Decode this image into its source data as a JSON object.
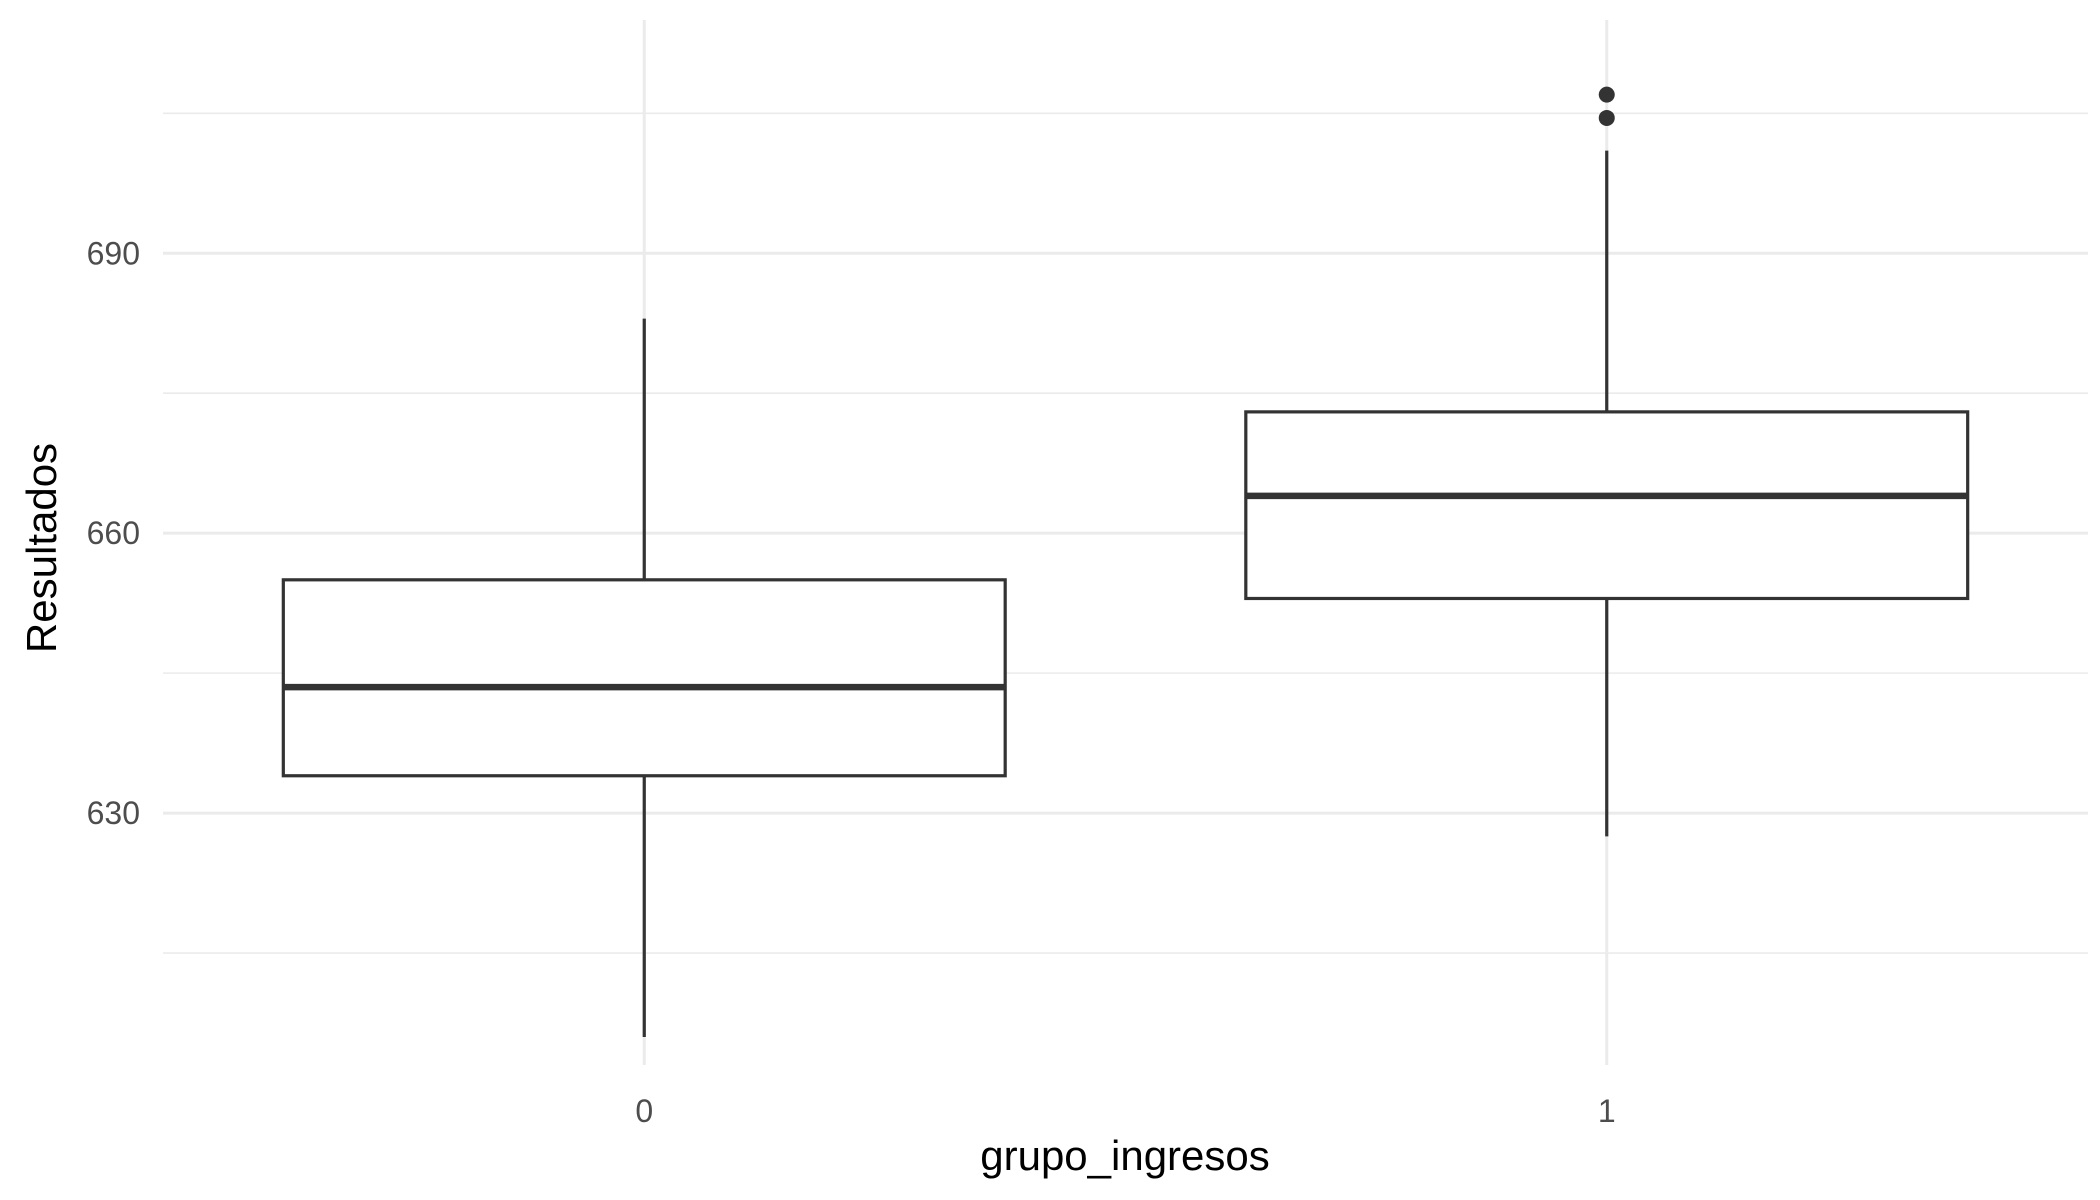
{
  "chart_data": {
    "type": "boxplot",
    "xlabel": "grupo_ingresos",
    "ylabel": "Resultados",
    "categories": [
      "0",
      "1"
    ],
    "ylim": [
      603,
      715
    ],
    "y_ticks": [
      630,
      660,
      690
    ],
    "y_minor_ticks": [
      615,
      645,
      675,
      705
    ],
    "grid": true,
    "boxes": [
      {
        "category": "0",
        "whisker_low": 606,
        "q1": 634,
        "median": 643.5,
        "q3": 655,
        "whisker_high": 683,
        "outliers": []
      },
      {
        "category": "1",
        "whisker_low": 627.5,
        "q1": 653,
        "median": 664,
        "q3": 673,
        "whisker_high": 701,
        "outliers": [
          704.5,
          707
        ]
      }
    ],
    "colors": {
      "box_stroke": "#333333",
      "box_fill": "#ffffff",
      "grid": "#ebebeb",
      "tick_text": "#4d4d4d"
    }
  }
}
